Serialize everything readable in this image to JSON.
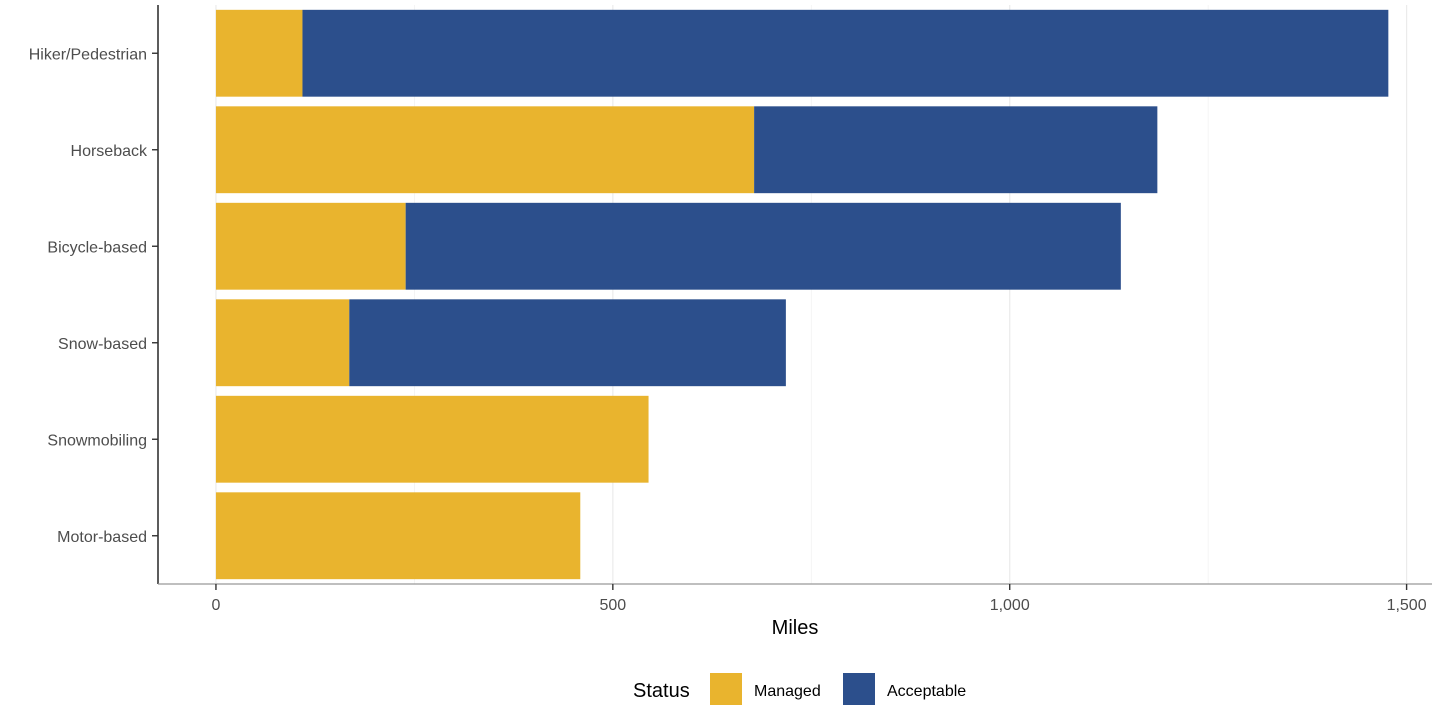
{
  "chart_data": {
    "type": "bar",
    "orientation": "horizontal",
    "stacked": true,
    "categories": [
      "Hiker/Pedestrian",
      "Horseback",
      "Bicycle-based",
      "Snow-based",
      "Snowmobiling",
      "Motor-based"
    ],
    "series": [
      {
        "name": "Managed",
        "color": "#E9B42E",
        "values": [
          109,
          678,
          239,
          168,
          545,
          459
        ]
      },
      {
        "name": "Acceptable",
        "color": "#2C4F8C",
        "values": [
          1368,
          508,
          901,
          550,
          0,
          0
        ]
      }
    ],
    "xlabel": "Miles",
    "ylabel": "",
    "xlim": [
      -73,
      1532
    ],
    "xticks": [
      0,
      500,
      1000,
      1500
    ],
    "xtick_labels": [
      "0",
      "500",
      "1,000",
      "1,500"
    ],
    "grid": true,
    "legend": {
      "title": "Status",
      "position": "bottom"
    }
  }
}
